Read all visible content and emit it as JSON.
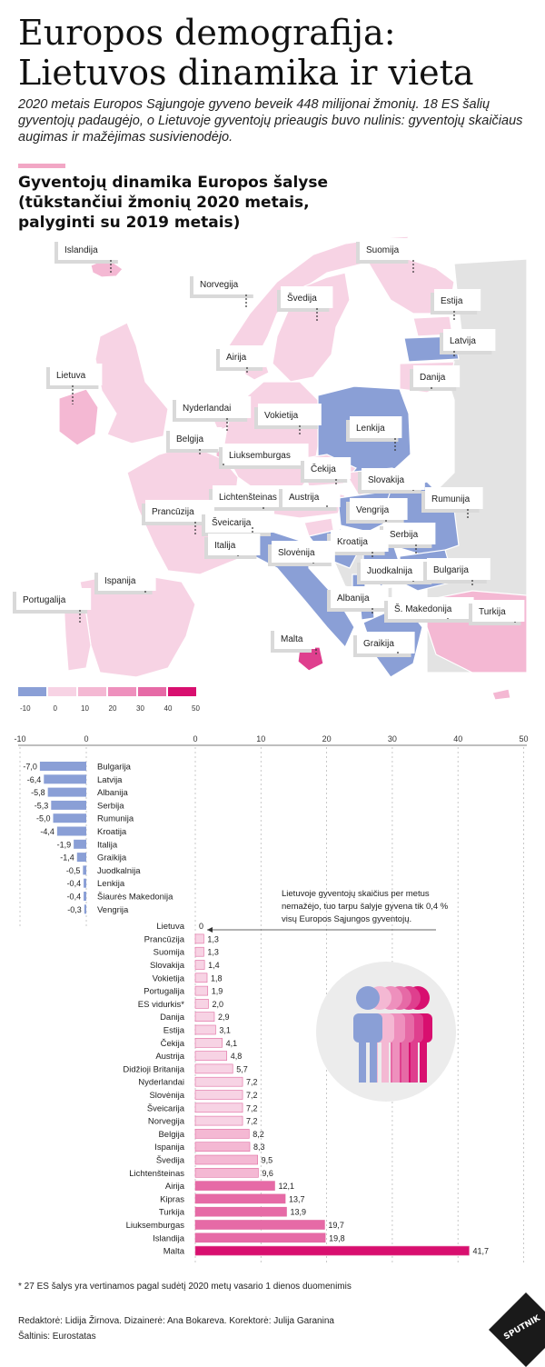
{
  "header": {
    "title": "Europos demografija: Lietuvos dinamika ir vieta",
    "intro": "2020 metais Europos Sąjungoje gyveno beveik 448 milijonai žmonių. 18 ES šalių gyventojų padaugėjo, o Lietuvoje gyventojų prieaugis buvo nulinis: gyventojų skaičiaus augimas ir mažėjimas susivienodėjo.",
    "section_title": "Gyventojų dinamika Europos šalyse (tūkstančiui žmonių 2020 metais, palyginti su 2019 metais)"
  },
  "colors": {
    "neg": "#8a9fd6",
    "c0": "#f7d3e4",
    "c10": "#f4b8d3",
    "c20": "#ee90bd",
    "c30": "#e66aa6",
    "c40": "#df3f8e",
    "c50": "#d80f6f",
    "nodata": "#e3e3e3",
    "accent": "#f2a7c5"
  },
  "map": {
    "labels": [
      {
        "name": "Islandija"
      },
      {
        "name": "Suomija"
      },
      {
        "name": "Norvegija"
      },
      {
        "name": "Švedija"
      },
      {
        "name": "Estija"
      },
      {
        "name": "Latvija"
      },
      {
        "name": "Danija"
      },
      {
        "name": "Airija"
      },
      {
        "name": "Lietuva"
      },
      {
        "name": "Nyderlandai"
      },
      {
        "name": "Vokietija"
      },
      {
        "name": "Lenkija"
      },
      {
        "name": "Belgija"
      },
      {
        "name": "Liuksemburgas"
      },
      {
        "name": "Čekija"
      },
      {
        "name": "Slovakija"
      },
      {
        "name": "Lichtenšteinas"
      },
      {
        "name": "Austrija"
      },
      {
        "name": "Rumunija"
      },
      {
        "name": "Prancūzija"
      },
      {
        "name": "Vengrija"
      },
      {
        "name": "Šveicarija"
      },
      {
        "name": "Serbija"
      },
      {
        "name": "Kroatija"
      },
      {
        "name": "Italija"
      },
      {
        "name": "Slovėnija"
      },
      {
        "name": "Juodkalnija"
      },
      {
        "name": "Bulgarija"
      },
      {
        "name": "Ispanija"
      },
      {
        "name": "Portugalija"
      },
      {
        "name": "Albanija"
      },
      {
        "name": "Š. Makedonija"
      },
      {
        "name": "Turkija"
      },
      {
        "name": "Malta"
      },
      {
        "name": "Graikija"
      }
    ],
    "legend_ticks": [
      "-10",
      "0",
      "10",
      "20",
      "30",
      "40",
      "50"
    ]
  },
  "chart_data": {
    "type": "bar",
    "orientation": "horizontal",
    "xlim": [
      -10,
      50
    ],
    "x_ticks_negative": [
      "-10",
      "0"
    ],
    "x_ticks_positive": [
      "0",
      "10",
      "20",
      "30",
      "40",
      "50"
    ],
    "categories": [
      "Bulgarija",
      "Latvija",
      "Albanija",
      "Serbija",
      "Rumunija",
      "Kroatija",
      "Italija",
      "Graikija",
      "Juodkalnija",
      "Lenkija",
      "Šiaurės Makedonija",
      "Vengrija",
      "Lietuva",
      "Prancūzija",
      "Suomija",
      "Slovakija",
      "Vokietija",
      "Portugalija",
      "ES vidurkis*",
      "Danija",
      "Estija",
      "Čekija",
      "Austrija",
      "Didžioji Britanija",
      "Nyderlandai",
      "Slovėnija",
      "Šveicarija",
      "Norvegija",
      "Belgija",
      "Ispanija",
      "Švedija",
      "Lichtenšteinas",
      "Airija",
      "Kipras",
      "Turkija",
      "Liuksemburgas",
      "Islandija",
      "Malta"
    ],
    "values": [
      -7.0,
      -6.4,
      -5.8,
      -5.3,
      -5.0,
      -4.4,
      -1.9,
      -1.4,
      -0.5,
      -0.4,
      -0.4,
      -0.3,
      0,
      1.3,
      1.3,
      1.4,
      1.8,
      1.9,
      2.0,
      2.9,
      3.1,
      4.1,
      4.8,
      5.7,
      7.2,
      7.2,
      7.2,
      7.2,
      8.2,
      8.3,
      9.5,
      9.6,
      12.1,
      13.7,
      13.9,
      19.7,
      19.8,
      41.7
    ],
    "value_labels": [
      "-7,0",
      "-6,4",
      "-5,8",
      "-5,3",
      "-5,0",
      "-4,4",
      "-1,9",
      "-1,4",
      "-0,5",
      "-0,4",
      "-0,4",
      "-0,3",
      "0",
      "1,3",
      "1,3",
      "1,4",
      "1,8",
      "1,9",
      "2,0",
      "2,9",
      "3,1",
      "4,1",
      "4,8",
      "5,7",
      "7,2",
      "7,2",
      "7,2",
      "7,2",
      "8,2",
      "8,3",
      "9,5",
      "9,6",
      "12,1",
      "13,7",
      "13,9",
      "19,7",
      "19,8",
      "41,7"
    ],
    "annotation": "Lietuvoje gyventojų skaičius per metus nemažėjo, tuo tarpu šalyje gyvena tik 0,4 % visų Europos Sąjungos gyventojų."
  },
  "footer": {
    "note": "* 27 ES šalys yra vertinamos pagal sudėtį 2020 metų vasario 1 dienos duomenimis",
    "credits": "Redaktorė: Lidija Žirnova. Dizainerė: Ana Bokareva. Korektorė: Julija Garanina",
    "source": "Šaltinis: Eurostatas",
    "logo": "SPUTNIK"
  }
}
